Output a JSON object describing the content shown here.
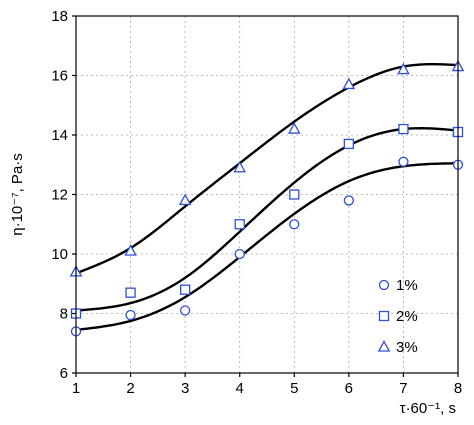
{
  "chart_data": {
    "type": "scatter",
    "xlabel": "τ·60⁻¹, s",
    "ylabel": "η·10⁻⁷, Pa·s",
    "xlim": [
      1,
      8
    ],
    "ylim": [
      6,
      18
    ],
    "x_ticks": [
      "1",
      "2",
      "3",
      "4",
      "5",
      "6",
      "7",
      "8"
    ],
    "y_ticks": [
      "6",
      "8",
      "10",
      "12",
      "14",
      "16",
      "18"
    ],
    "grid": true,
    "legend_position": "bottom-right",
    "marker_color": "#2b4fd8",
    "line_color": "#000000",
    "x": [
      1,
      2,
      3,
      4,
      5,
      6,
      7,
      8
    ],
    "series": [
      {
        "name": "1%",
        "marker": "circle",
        "values": [
          7.4,
          7.95,
          8.1,
          10.0,
          11.0,
          11.8,
          13.1,
          13.0
        ],
        "fit": [
          7.45,
          7.75,
          8.55,
          9.9,
          11.35,
          12.45,
          12.95,
          13.05
        ]
      },
      {
        "name": "2%",
        "marker": "square",
        "values": [
          8.0,
          8.7,
          8.8,
          11.0,
          12.0,
          13.7,
          14.2,
          14.1
        ],
        "fit": [
          8.1,
          8.35,
          9.2,
          10.75,
          12.4,
          13.65,
          14.2,
          14.15
        ]
      },
      {
        "name": "3%",
        "marker": "triangle",
        "values": [
          9.4,
          10.1,
          11.8,
          12.9,
          14.2,
          15.7,
          16.2,
          16.3
        ],
        "fit": [
          9.35,
          10.2,
          11.6,
          13.05,
          14.45,
          15.6,
          16.3,
          16.35
        ]
      }
    ]
  }
}
